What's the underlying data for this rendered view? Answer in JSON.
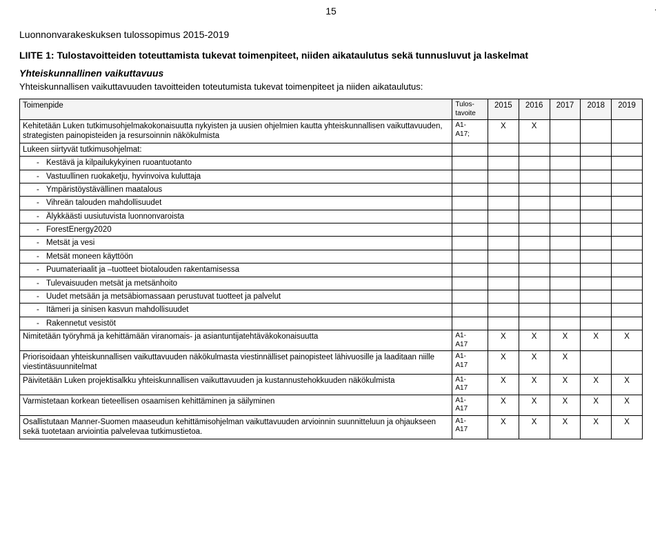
{
  "pageNumber": "15",
  "docTitle": "Luonnonvarakeskuksen tulossopimus 2015-2019",
  "appendixTitle": "LIITE 1: Tulostavoitteiden toteuttamista tukevat toimenpiteet, niiden aikataulutus sekä tunnusluvut ja laskelmat",
  "sectionHeading": "Yhteiskunnallinen vaikuttavuus",
  "sectionSub": "Yhteiskunnallisen vaikuttavuuden tavoitteiden toteutumista tukevat toimenpiteet ja niiden aikataulutus:",
  "columns": {
    "c0": "Toimenpide",
    "c1": "Tulos-\ntavoite",
    "c2": "2015",
    "c3": "2016",
    "c4": "2017",
    "c5": "2018",
    "c6": "2019"
  },
  "rows": [
    {
      "desc": "Kehitetään Luken tutkimusohjelmakokonaisuutta nykyisten ja uusien ohjelmien kautta yhteiskunnallisen vaikuttavuuden, strategisten painopisteiden ja resursoinnin näkökulmista",
      "tavoite": "A1-\nA17;",
      "y": [
        "X",
        "X",
        "",
        "",
        ""
      ]
    },
    {
      "desc": "Lukeen siirtyvät tutkimusohjelmat:",
      "tavoite": "",
      "y": [
        "",
        "",
        "",
        "",
        ""
      ]
    },
    {
      "desc": "Kestävä ja kilpailukykyinen ruoantuotanto",
      "bullet": true,
      "tavoite": "",
      "y": [
        "",
        "",
        "",
        "",
        ""
      ]
    },
    {
      "desc": "Vastuullinen ruokaketju, hyvinvoiva kuluttaja",
      "bullet": true,
      "tavoite": "",
      "y": [
        "",
        "",
        "",
        "",
        ""
      ]
    },
    {
      "desc": "Ympäristöystävällinen maatalous",
      "bullet": true,
      "tavoite": "",
      "y": [
        "",
        "",
        "",
        "",
        ""
      ]
    },
    {
      "desc": "Vihreän talouden mahdollisuudet",
      "bullet": true,
      "tavoite": "",
      "y": [
        "",
        "",
        "",
        "",
        ""
      ]
    },
    {
      "desc": "Älykkäästi uusiutuvista luonnonvaroista",
      "bullet": true,
      "tavoite": "",
      "y": [
        "",
        "",
        "",
        "",
        ""
      ]
    },
    {
      "desc": "ForestEnergy2020",
      "bullet": true,
      "tavoite": "",
      "y": [
        "",
        "",
        "",
        "",
        ""
      ]
    },
    {
      "desc": "Metsät ja vesi",
      "bullet": true,
      "tavoite": "",
      "y": [
        "",
        "",
        "",
        "",
        ""
      ]
    },
    {
      "desc": "Metsät moneen käyttöön",
      "bullet": true,
      "tavoite": "",
      "y": [
        "",
        "",
        "",
        "",
        ""
      ]
    },
    {
      "desc": "Puumateriaalit ja –tuotteet biotalouden rakentamisessa",
      "bullet": true,
      "tavoite": "",
      "y": [
        "",
        "",
        "",
        "",
        ""
      ]
    },
    {
      "desc": "Tulevaisuuden metsät ja metsänhoito",
      "bullet": true,
      "tavoite": "",
      "y": [
        "",
        "",
        "",
        "",
        ""
      ]
    },
    {
      "desc": "Uudet metsään ja metsäbiomassaan perustuvat tuotteet ja palvelut",
      "bullet": true,
      "tavoite": "",
      "y": [
        "",
        "",
        "",
        "",
        ""
      ]
    },
    {
      "desc": "Itämeri ja sinisen kasvun mahdollisuudet",
      "bullet": true,
      "tavoite": "",
      "y": [
        "",
        "",
        "",
        "",
        ""
      ]
    },
    {
      "desc": "Rakennetut vesistöt",
      "bullet": true,
      "tavoite": "",
      "y": [
        "",
        "",
        "",
        "",
        ""
      ]
    },
    {
      "desc": "Nimitetään työryhmä ja kehittämään viranomais- ja asiantuntijatehtäväkokonaisuutta",
      "tavoite": "A1-\nA17",
      "y": [
        "X",
        "X",
        "X",
        "X",
        "X"
      ]
    },
    {
      "desc": "Priorisoidaan yhteiskunnallisen vaikuttavuuden näkökulmasta viestinnälliset painopisteet lähivuosille ja laaditaan niille viestintäsuunnitelmat",
      "tavoite": "A1-\nA17",
      "y": [
        "X",
        "X",
        "X",
        "",
        ""
      ]
    },
    {
      "desc": "Päivitetään Luken projektisalkku yhteiskunnallisen vaikuttavuuden ja kustannustehokkuuden näkökulmista",
      "tavoite": "A1-\nA17",
      "y": [
        "X",
        "X",
        "X",
        "X",
        "X"
      ]
    },
    {
      "desc": "Varmistetaan korkean tieteellisen osaamisen kehittäminen ja säilyminen",
      "tavoite": "A1-\nA17",
      "y": [
        "X",
        "X",
        "X",
        "X",
        "X"
      ]
    },
    {
      "desc": "Osallistutaan Manner-Suomen maaseudun kehittämisohjelman vaikuttavuuden arvioinnin suunnitteluun ja ohjaukseen sekä tuotetaan arviointia palvelevaa tutkimustietoa.",
      "tavoite": "A1-\nA17",
      "y": [
        "X",
        "X",
        "X",
        "X",
        "X"
      ]
    }
  ]
}
